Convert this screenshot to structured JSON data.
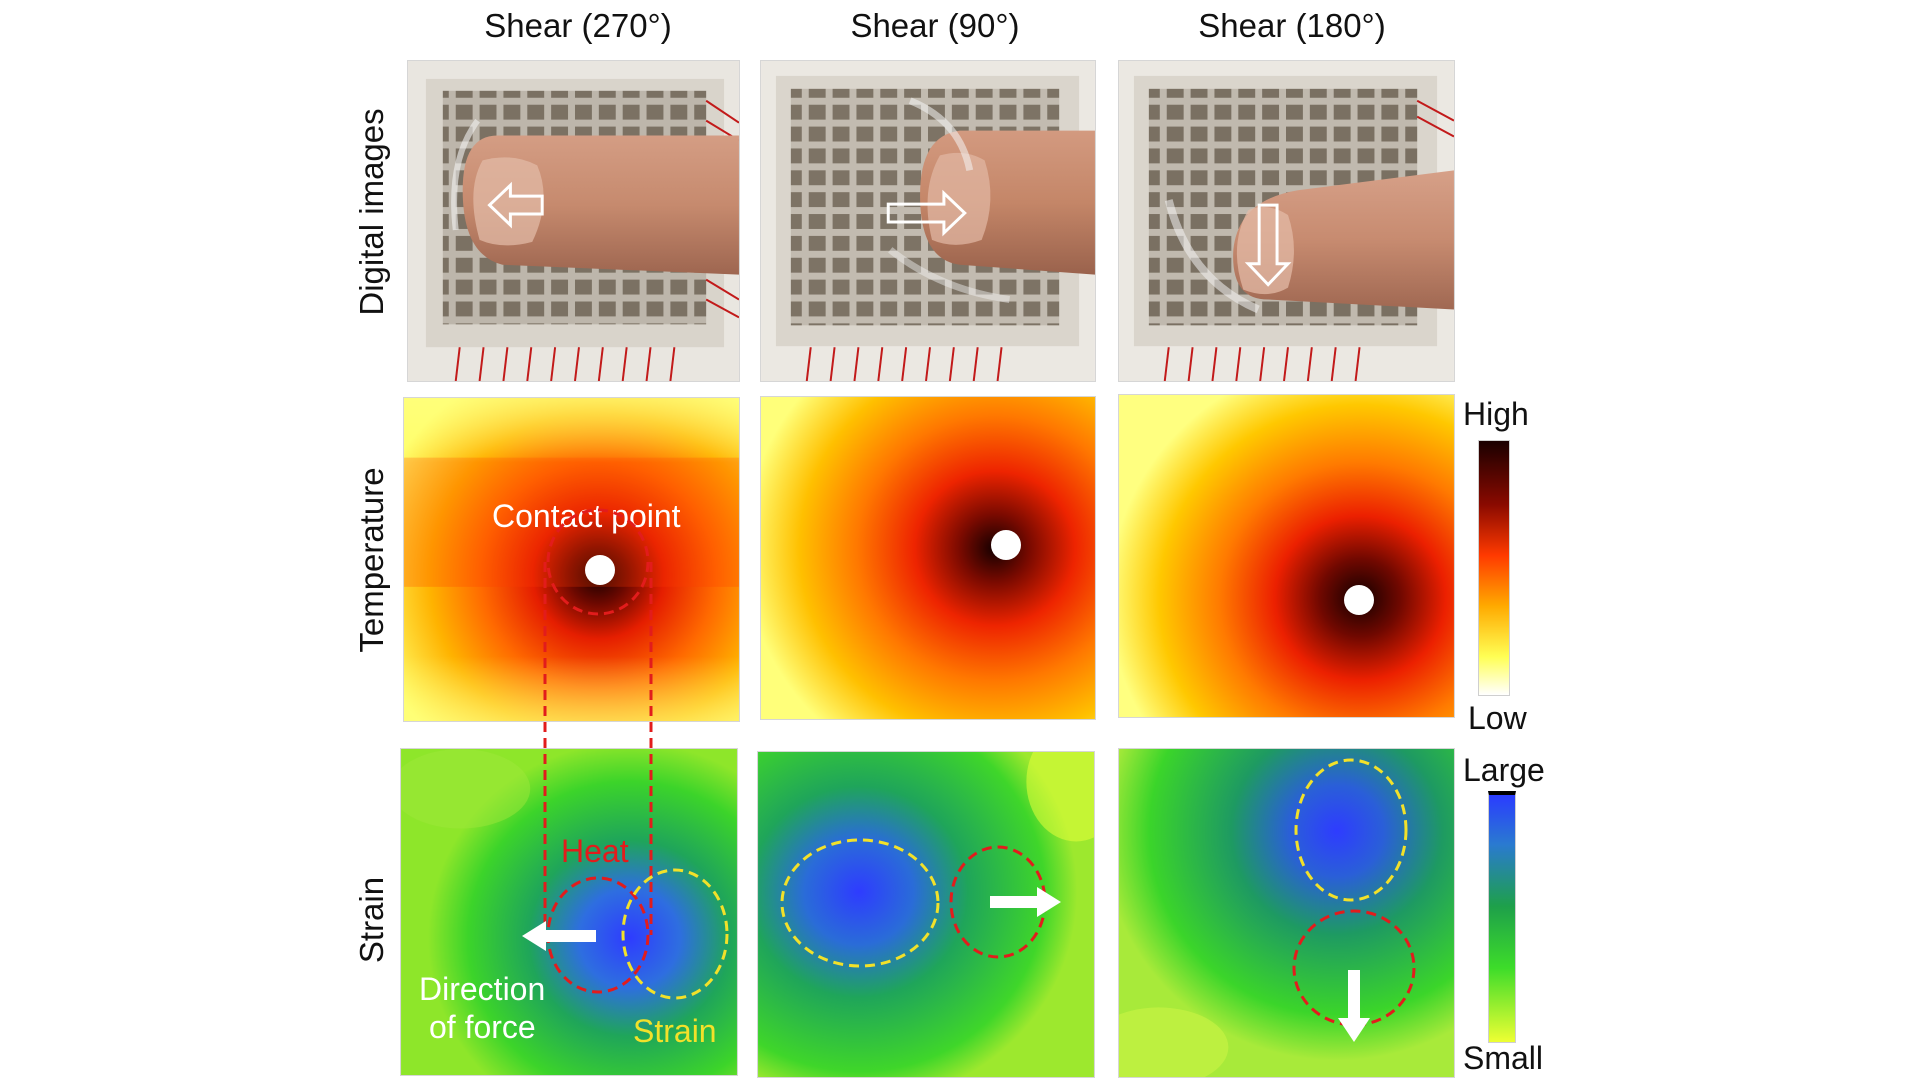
{
  "columns": [
    {
      "title": "Shear (270°)"
    },
    {
      "title": "Shear (90°)"
    },
    {
      "title": "Shear (180°)"
    }
  ],
  "rows": {
    "digital": "Digital images",
    "temperature": "Temperature",
    "strain": "Strain"
  },
  "annotations": {
    "contact_point": "Contact point",
    "heat": "Heat",
    "direction_of_force_line1": "Direction",
    "direction_of_force_line2": "of force",
    "strain": "Strain"
  },
  "scales": {
    "temperature": {
      "high": "High",
      "low": "Low"
    },
    "strain": {
      "large": "Large",
      "small": "Small"
    }
  },
  "colors": {
    "heat_outline": "#e21c1c",
    "strain_outline": "#f2e12a",
    "temperature_scale": [
      "#1a0000",
      "#8a0a00",
      "#ff3a00",
      "#ffaa00",
      "#ffff55",
      "#ffffff"
    ],
    "strain_scale": [
      "#2a3cff",
      "#1ea04a",
      "#3ddc2a",
      "#eeff33"
    ]
  }
}
